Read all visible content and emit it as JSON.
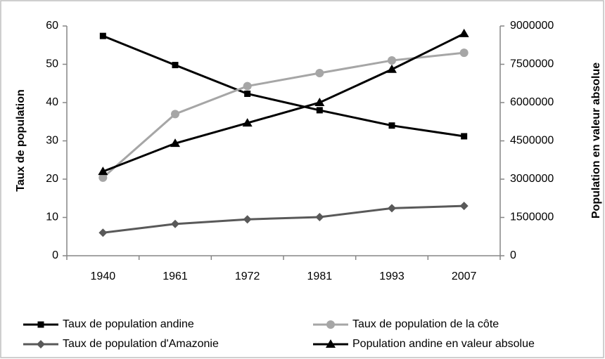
{
  "chart_data": {
    "type": "line",
    "ylabel": "Taux de population",
    "y2label": "Population en valeur absolue",
    "categories": [
      "1940",
      "1961",
      "1972",
      "1981",
      "1993",
      "2007"
    ],
    "ylim": [
      0,
      60
    ],
    "yticks": [
      0,
      10,
      20,
      30,
      40,
      50,
      60
    ],
    "y2lim": [
      0,
      9000000
    ],
    "y2ticks": [
      0,
      1500000,
      3000000,
      4500000,
      6000000,
      7500000,
      9000000
    ],
    "series": [
      {
        "name": "Taux de population andine",
        "color": "#000000",
        "marker": "square",
        "values": [
          57.4,
          49.8,
          42.3,
          38,
          34,
          31.2
        ]
      },
      {
        "name": "Taux de population de la côte",
        "color": "#a6a6a6",
        "marker": "circle",
        "values": [
          20.4,
          37,
          44.3,
          47.7,
          51,
          53
        ]
      },
      {
        "name": "Taux de population d'Amazonie",
        "color": "#595959",
        "marker": "diamond",
        "values": [
          6,
          8.3,
          9.5,
          10.1,
          12.4,
          13
        ]
      },
      {
        "name": "Population andine en valeur absolue",
        "color": "#000000",
        "marker": "triangle",
        "axis": "y2",
        "values": [
          3300000,
          4400000,
          5200000,
          6000000,
          7300000,
          8700000
        ]
      }
    ]
  }
}
